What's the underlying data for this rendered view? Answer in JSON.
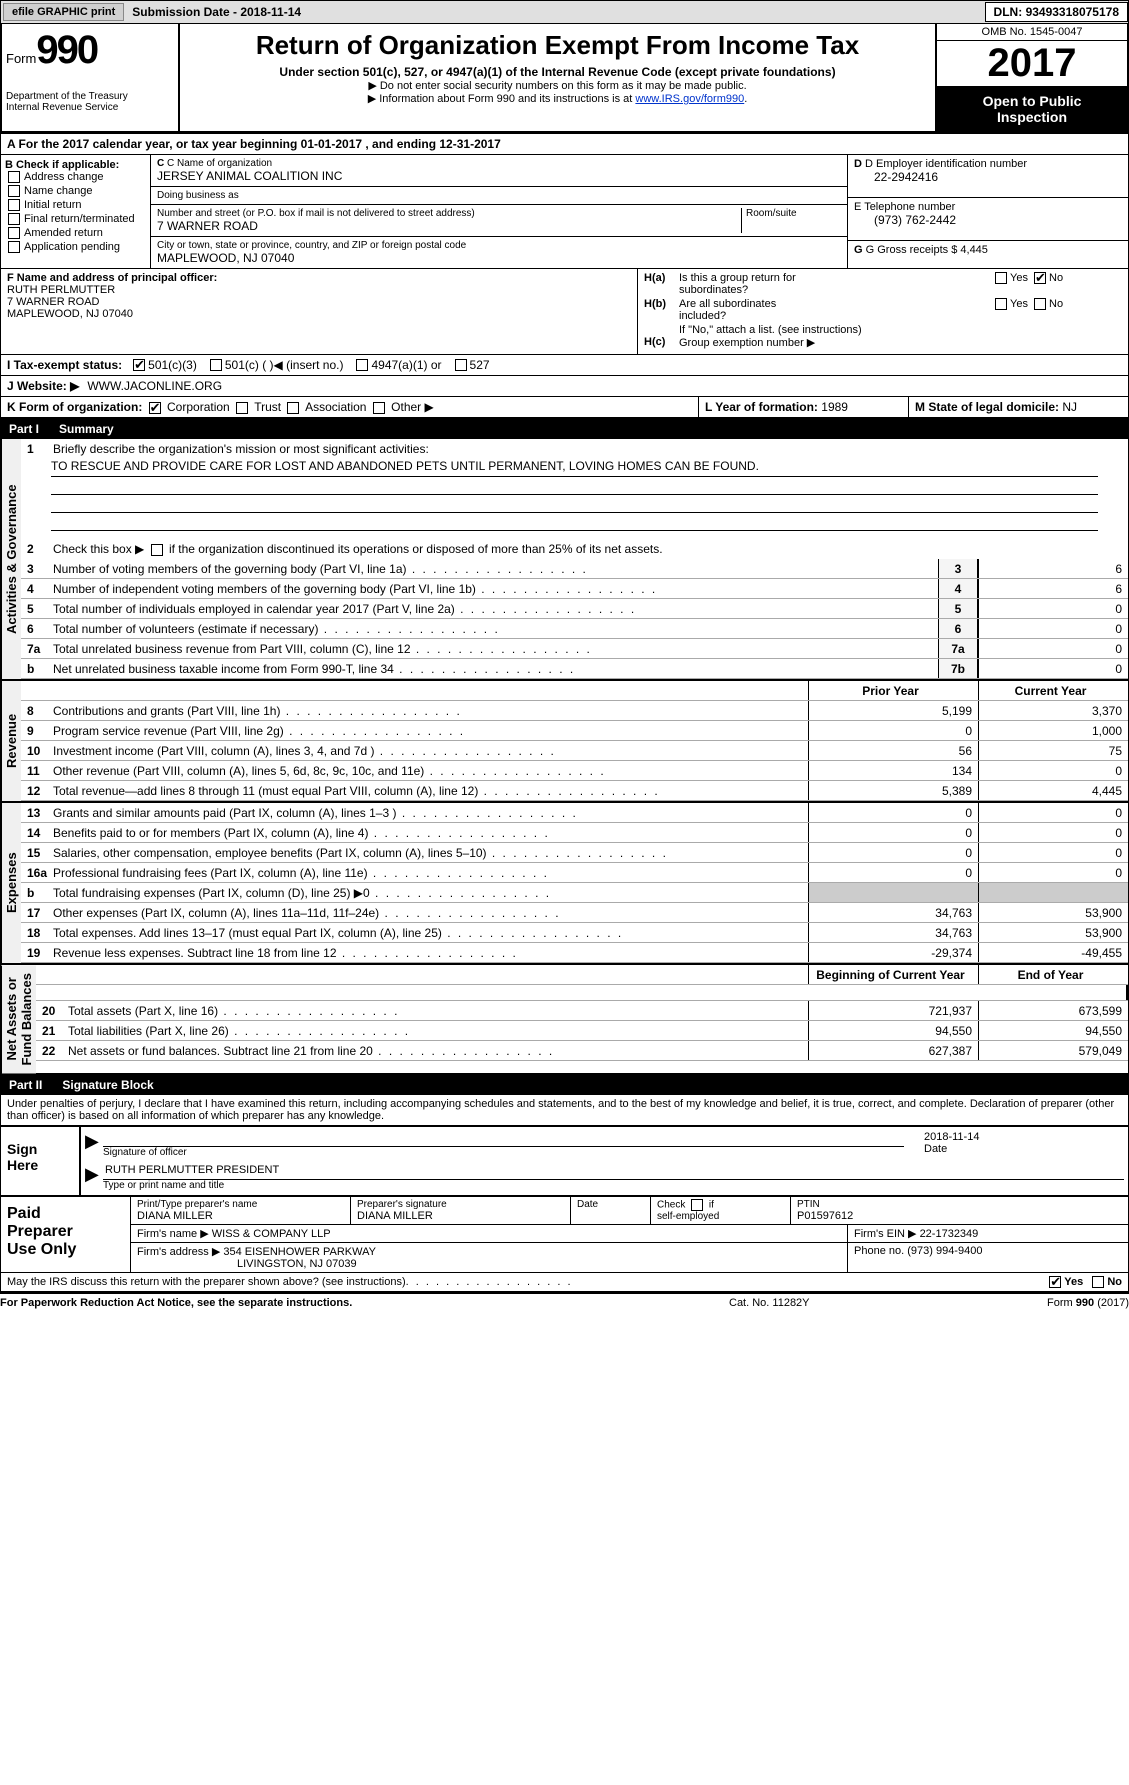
{
  "topbar": {
    "efile_btn": "efile GRAPHIC print",
    "sub_date_label": "Submission Date -",
    "sub_date_val": "2018-11-14",
    "dln_label": "DLN:",
    "dln_val": "93493318075178"
  },
  "header": {
    "form_word": "Form",
    "form_num": "990",
    "dept1": "Department of the Treasury",
    "dept2": "Internal Revenue Service",
    "title": "Return of Organization Exempt From Income Tax",
    "subtitle": "Under section 501(c), 527, or 4947(a)(1) of the Internal Revenue Code (except private foundations)",
    "bullet1": "Do not enter social security numbers on this form as it may be made public.",
    "bullet2": "Information about Form 990 and its instructions is at ",
    "link": "www.IRS.gov/form990",
    "omb": "OMB No. 1545-0047",
    "year": "2017",
    "open1": "Open to Public",
    "open2": "Inspection"
  },
  "line_a": "A  For the 2017 calendar year, or tax year beginning 01-01-2017    , and ending 12-31-2017",
  "section_b": {
    "header": "B Check if applicable:",
    "items": [
      "Address change",
      "Name change",
      "Initial return",
      "Final return/terminated",
      "Amended return",
      "Application pending"
    ]
  },
  "section_c": {
    "name_label": "C Name of organization",
    "name_val": "JERSEY ANIMAL COALITION INC",
    "dba_label": "Doing business as",
    "dba_val": "",
    "addr_label": "Number and street (or P.O. box if mail is not delivered to street address)",
    "room_label": "Room/suite",
    "addr_val": "7 WARNER ROAD",
    "city_label": "City or town, state or province, country, and ZIP or foreign postal code",
    "city_val": "MAPLEWOOD, NJ  07040"
  },
  "section_d": {
    "ein_label": "D Employer identification number",
    "ein_val": "22-2942416",
    "tel_label": "E Telephone number",
    "tel_val": "(973) 762-2442",
    "gross_label": "G Gross receipts $",
    "gross_val": "4,445"
  },
  "section_f": {
    "label": "F  Name and address of principal officer:",
    "line1": "RUTH PERLMUTTER",
    "line2": "7 WARNER ROAD",
    "line3": "MAPLEWOOD, NJ  07040"
  },
  "section_h": {
    "ha_label": "H(a)",
    "ha_text1": "Is this a group return for",
    "ha_text2": "subordinates?",
    "hb_label": "H(b)",
    "hb_text1": "Are all subordinates",
    "hb_text2": "included?",
    "h_note": "If \"No,\" attach a list. (see instructions)",
    "hc_label": "H(c)",
    "hc_text": "Group exemption number ▶",
    "yes": "Yes",
    "no": "No"
  },
  "line_i": {
    "label": "I  Tax-exempt status:",
    "opt1": "501(c)(3)",
    "opt2": "501(c) (  )",
    "opt2_note": "◀ (insert no.)",
    "opt3": "4947(a)(1) or",
    "opt4": "527"
  },
  "line_j": {
    "label": "J  Website: ▶",
    "val": "WWW.JACONLINE.ORG"
  },
  "line_k": {
    "label": "K Form of organization:",
    "opts": [
      "Corporation",
      "Trust",
      "Association",
      "Other ▶"
    ],
    "l_label": "L Year of formation:",
    "l_val": "1989",
    "m_label": "M State of legal domicile:",
    "m_val": "NJ"
  },
  "part1": {
    "part_num": "Part I",
    "part_title": "Summary",
    "side1": "Activities & Governance",
    "side2": "Revenue",
    "side3": "Expenses",
    "side4": "Net Assets or\nFund Balances",
    "q1": "Briefly describe the organization's mission or most significant activities:",
    "q1_val": "TO RESCUE AND PROVIDE CARE FOR LOST AND ABANDONED PETS UNTIL PERMANENT, LOVING HOMES CAN BE FOUND.",
    "q2": "Check this box ▶        if the organization discontinued its operations or disposed of more than 25% of its net assets.",
    "lines_ag": [
      {
        "n": "3",
        "t": "Number of voting members of the governing body (Part VI, line 1a)",
        "b": "3",
        "v": "6"
      },
      {
        "n": "4",
        "t": "Number of independent voting members of the governing body (Part VI, line 1b)",
        "b": "4",
        "v": "6"
      },
      {
        "n": "5",
        "t": "Total number of individuals employed in calendar year 2017 (Part V, line 2a)",
        "b": "5",
        "v": "0"
      },
      {
        "n": "6",
        "t": "Total number of volunteers (estimate if necessary)",
        "b": "6",
        "v": "0"
      },
      {
        "n": "7a",
        "t": "Total unrelated business revenue from Part VIII, column (C), line 12",
        "b": "7a",
        "v": "0"
      },
      {
        "n": "b",
        "t": "Net unrelated business taxable income from Form 990-T, line 34",
        "b": "7b",
        "v": "0"
      }
    ],
    "col_prior": "Prior Year",
    "col_current": "Current Year",
    "lines_rev": [
      {
        "n": "8",
        "t": "Contributions and grants (Part VIII, line 1h)",
        "p": "5,199",
        "c": "3,370"
      },
      {
        "n": "9",
        "t": "Program service revenue (Part VIII, line 2g)",
        "p": "0",
        "c": "1,000"
      },
      {
        "n": "10",
        "t": "Investment income (Part VIII, column (A), lines 3, 4, and 7d )",
        "p": "56",
        "c": "75"
      },
      {
        "n": "11",
        "t": "Other revenue (Part VIII, column (A), lines 5, 6d, 8c, 9c, 10c, and 11e)",
        "p": "134",
        "c": "0"
      },
      {
        "n": "12",
        "t": "Total revenue—add lines 8 through 11 (must equal Part VIII, column (A), line 12)",
        "p": "5,389",
        "c": "4,445"
      }
    ],
    "lines_exp": [
      {
        "n": "13",
        "t": "Grants and similar amounts paid (Part IX, column (A), lines 1–3 )",
        "p": "0",
        "c": "0"
      },
      {
        "n": "14",
        "t": "Benefits paid to or for members (Part IX, column (A), line 4)",
        "p": "0",
        "c": "0"
      },
      {
        "n": "15",
        "t": "Salaries, other compensation, employee benefits (Part IX, column (A), lines 5–10)",
        "p": "0",
        "c": "0"
      },
      {
        "n": "16a",
        "t": "Professional fundraising fees (Part IX, column (A), line 11e)",
        "p": "0",
        "c": "0"
      },
      {
        "n": "b",
        "t": "Total fundraising expenses (Part IX, column (D), line 25) ▶0",
        "p": "",
        "c": "",
        "grey": true
      },
      {
        "n": "17",
        "t": "Other expenses (Part IX, column (A), lines 11a–11d, 11f–24e)",
        "p": "34,763",
        "c": "53,900"
      },
      {
        "n": "18",
        "t": "Total expenses. Add lines 13–17 (must equal Part IX, column (A), line 25)",
        "p": "34,763",
        "c": "53,900"
      },
      {
        "n": "19",
        "t": "Revenue less expenses. Subtract line 18 from line 12",
        "p": "-29,374",
        "c": "-49,455"
      }
    ],
    "col_bcy": "Beginning of Current Year",
    "col_eoy": "End of Year",
    "lines_na": [
      {
        "n": "20",
        "t": "Total assets (Part X, line 16)",
        "p": "721,937",
        "c": "673,599"
      },
      {
        "n": "21",
        "t": "Total liabilities (Part X, line 26)",
        "p": "94,550",
        "c": "94,550"
      },
      {
        "n": "22",
        "t": "Net assets or fund balances. Subtract line 21 from line 20",
        "p": "627,387",
        "c": "579,049"
      }
    ]
  },
  "part2": {
    "part_num": "Part II",
    "part_title": "Signature Block",
    "perjury": "Under penalties of perjury, I declare that I have examined this return, including accompanying schedules and statements, and to the best of my knowledge and belief, it is true, correct, and complete. Declaration of preparer (other than officer) is based on all information of which preparer has any knowledge.",
    "sign_here": "Sign\nHere",
    "sig_of_officer": "Signature of officer",
    "sig_date": "2018-11-14",
    "date_lbl": "Date",
    "officer_name": "RUTH PERLMUTTER PRESIDENT",
    "type_or_print": "Type or print name and title",
    "paid_prep": "Paid\nPreparer\nUse Only",
    "pp_name_lbl": "Print/Type preparer's name",
    "pp_name": "DIANA MILLER",
    "pp_sig_lbl": "Preparer's signature",
    "pp_sig": "DIANA MILLER",
    "pp_date_lbl": "Date",
    "pp_check_lbl": "Check        if self-employed",
    "pp_ptin_lbl": "PTIN",
    "pp_ptin": "P01597612",
    "firm_name_lbl": "Firm's name    ▶",
    "firm_name": "WISS & COMPANY LLP",
    "firm_ein_lbl": "Firm's EIN ▶",
    "firm_ein": "22-1732349",
    "firm_addr_lbl": "Firm's address ▶",
    "firm_addr1": "354 EISENHOWER PARKWAY",
    "firm_addr2": "LIVINGSTON, NJ  07039",
    "phone_lbl": "Phone no.",
    "phone": "(973) 994-9400",
    "discuss": "May the IRS discuss this return with the preparer shown above? (see instructions)",
    "yes": "Yes",
    "no": "No"
  },
  "footer": {
    "l": "For Paperwork Reduction Act Notice, see the separate instructions.",
    "c": "Cat. No. 11282Y",
    "r": "Form 990 (2017)"
  }
}
